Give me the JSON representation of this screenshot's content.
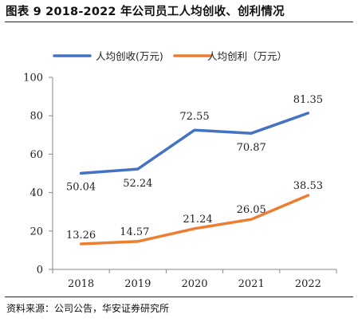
{
  "figure": {
    "title": "图表 9 2018-2022 年公司员工人均创收、创利情况",
    "source": "资料来源：公司公告，华安证券研究所"
  },
  "chart_data": {
    "type": "line",
    "x": [
      "2018",
      "2019",
      "2020",
      "2021",
      "2022"
    ],
    "series": [
      {
        "name": "人均创收(万元)",
        "color": "#4472C4",
        "values": [
          50.04,
          52.24,
          72.55,
          70.87,
          81.35
        ],
        "labels": [
          "50.04",
          "52.24",
          "72.55",
          "70.87",
          "81.35"
        ]
      },
      {
        "name": "人均创利（万元）",
        "color": "#ED7D31",
        "values": [
          13.26,
          14.57,
          21.24,
          26.05,
          38.53
        ],
        "labels": [
          "13.26",
          "14.57",
          "21.24",
          "26.05",
          "38.53"
        ]
      }
    ],
    "ylim": [
      0,
      100
    ],
    "yticks": [
      "0",
      "20",
      "40",
      "60",
      "80",
      "100"
    ],
    "legend": "top-left",
    "grid": false
  }
}
